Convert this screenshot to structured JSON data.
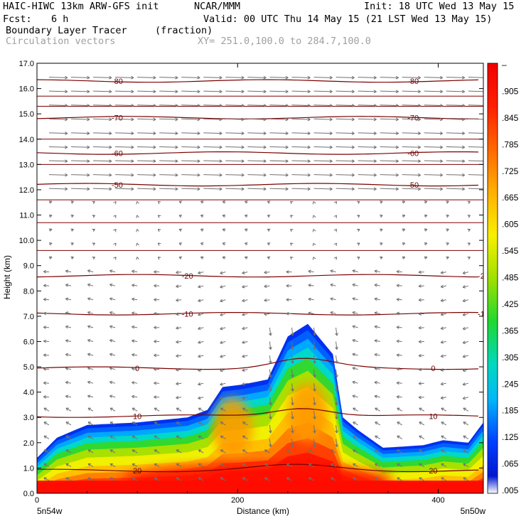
{
  "header": {
    "title_left": "HAIC-HIWC 13km ARW-GFS init",
    "org": "NCAR/MMM",
    "init": "Init: 18 UTC Wed 13 May 15",
    "fcst_label": "Fcst:",
    "fcst_value": "6 h",
    "valid": "Valid: 00 UTC Thu 14 May 15 (21 LST Wed 13 May 15)",
    "field_name": "Boundary Layer Tracer",
    "field_units": "(fraction)",
    "vectors": "Circulation vectors",
    "xy": "XY= 251.0,100.0 to 284.7,100.0"
  },
  "chart_data": {
    "type": "heatmap",
    "xlabel": "Distance (km)",
    "ylabel": "Height (km)",
    "xlim": [
      0,
      445
    ],
    "ylim": [
      0,
      17
    ],
    "x_ticks": [
      "0",
      "200",
      "400"
    ],
    "y_ticks": [
      "0.0",
      "1.0",
      "2.0",
      "3.0",
      "4.0",
      "5.0",
      "6.0",
      "7.0",
      "8.0",
      "9.0",
      "10.0",
      "11.0",
      "12.0",
      "13.0",
      "14.0",
      "15.0",
      "16.0",
      "17.0"
    ],
    "x_endpoints": {
      "left": "5n54w",
      "right": "5n50w"
    },
    "colorbar_labels": [
      "–",
      ".905",
      ".845",
      ".785",
      ".725",
      ".665",
      ".605",
      ".545",
      ".485",
      ".425",
      ".365",
      ".305",
      ".245",
      ".185",
      ".125",
      ".065",
      ".005"
    ],
    "tracer_top_km": [
      [
        0,
        1.4
      ],
      [
        20,
        2.2
      ],
      [
        50,
        2.7
      ],
      [
        100,
        2.8
      ],
      [
        150,
        3.0
      ],
      [
        170,
        3.3
      ],
      [
        185,
        4.2
      ],
      [
        205,
        4.3
      ],
      [
        230,
        4.5
      ],
      [
        250,
        6.2
      ],
      [
        270,
        6.7
      ],
      [
        295,
        5.5
      ],
      [
        305,
        3.0
      ],
      [
        320,
        2.5
      ],
      [
        345,
        1.8
      ],
      [
        385,
        1.9
      ],
      [
        405,
        2.1
      ],
      [
        430,
        2.0
      ],
      [
        445,
        2.8
      ]
    ],
    "tracer_core": [
      {
        "x": 270,
        "y": 3.2,
        "value": 0.6
      },
      {
        "x": 195,
        "y": 2.6,
        "value": 0.55
      },
      {
        "x": 220,
        "y": 0.5,
        "value": 0.95
      }
    ],
    "temperature_contours": [
      {
        "value": -80,
        "height_km": 16.3,
        "label": "-80"
      },
      {
        "value": -70,
        "height_km": 14.85,
        "label": "-70"
      },
      {
        "value": -60,
        "height_km": 13.45,
        "label": "-60"
      },
      {
        "value": -50,
        "height_km": 12.2,
        "label": "-50"
      },
      {
        "value": -20,
        "height_km": 8.6,
        "label": "-20"
      },
      {
        "value": -10,
        "height_km": 7.1,
        "label": "-10"
      },
      {
        "value": 0,
        "height_km": 4.95,
        "label": "0"
      },
      {
        "value": 10,
        "height_km": 3.05,
        "label": "10"
      },
      {
        "value": 20,
        "height_km": 0.9,
        "label": "20"
      }
    ]
  }
}
